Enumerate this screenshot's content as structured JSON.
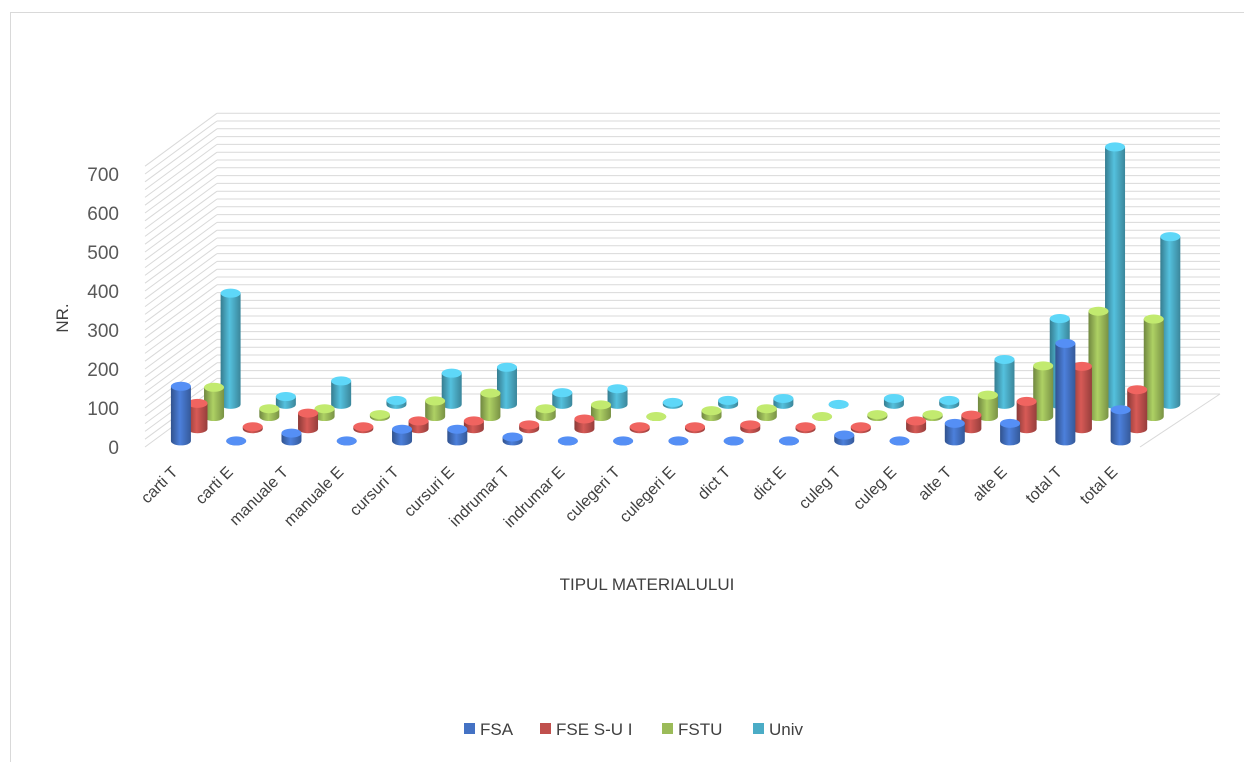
{
  "chart_data": {
    "type": "bar",
    "subtype": "3d-clustered-column",
    "xlabel": "TIPUL MATERIALULUI",
    "ylabel": "NR.",
    "ylim": [
      0,
      700
    ],
    "yticks": [
      "0",
      "100",
      "200",
      "300",
      "400",
      "500",
      "600",
      "700"
    ],
    "grid": true,
    "legend_position": "bottom",
    "categories": [
      "carti T",
      "carti E",
      "manuale T",
      "manuale E",
      "cursuri T",
      "cursuri E",
      "indrumar T",
      "indrumar E",
      "culegeri T",
      "culegeri E",
      "dict T",
      "dict E",
      "culeg T",
      "culeg E",
      "alte T",
      "alte E",
      "total T",
      "total E"
    ],
    "series": [
      {
        "name": "FSA",
        "color": "#4472c4",
        "values": [
          140,
          0,
          20,
          0,
          30,
          30,
          10,
          0,
          0,
          0,
          0,
          0,
          15,
          0,
          45,
          45,
          250,
          80
        ]
      },
      {
        "name": "FSE S-U I",
        "color": "#c0504d",
        "values": [
          65,
          5,
          40,
          5,
          20,
          20,
          10,
          25,
          5,
          5,
          10,
          5,
          5,
          20,
          35,
          70,
          160,
          100
        ]
      },
      {
        "name": "FSTU",
        "color": "#9bbb59",
        "values": [
          75,
          20,
          20,
          5,
          40,
          60,
          20,
          30,
          0,
          15,
          20,
          0,
          5,
          5,
          55,
          130,
          270,
          250
        ]
      },
      {
        "name": "Univ",
        "color": "#4bacc6",
        "values": [
          285,
          20,
          60,
          10,
          80,
          95,
          30,
          40,
          5,
          10,
          15,
          0,
          15,
          10,
          115,
          220,
          660,
          430
        ]
      }
    ]
  }
}
